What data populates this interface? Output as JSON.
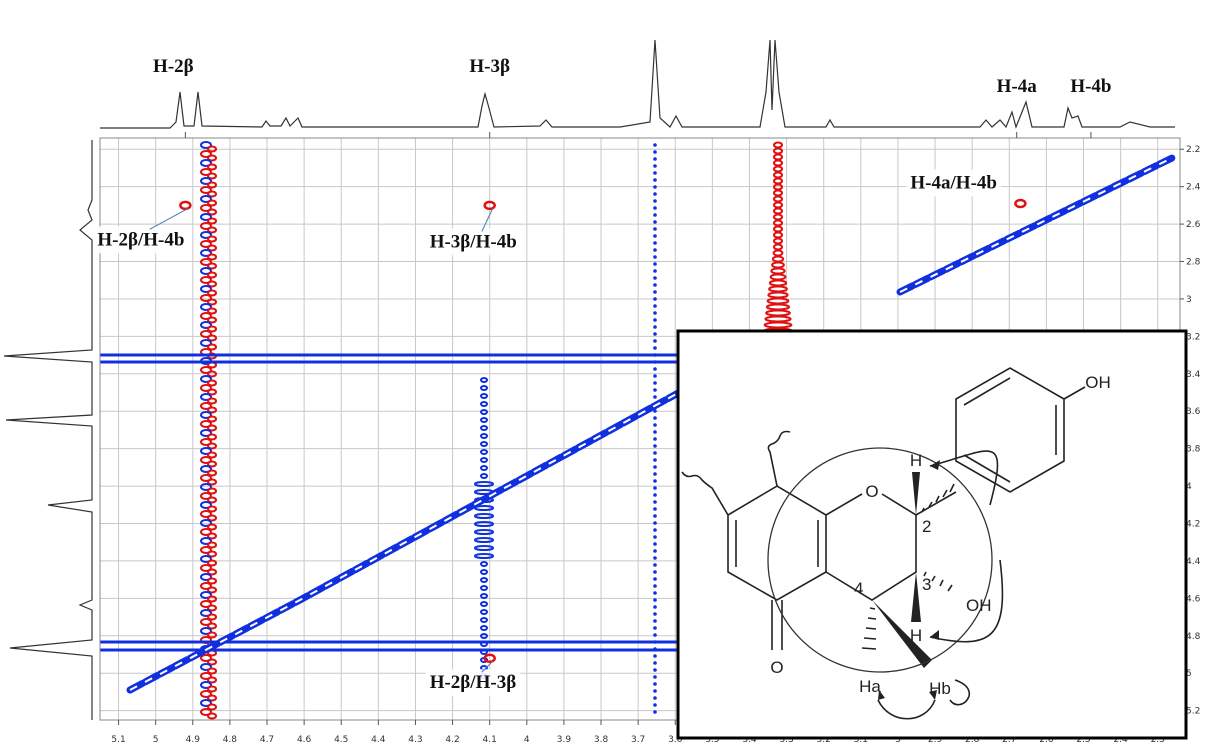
{
  "chart_data": {
    "type": "noesy",
    "xlim": [
      5.15,
      2.24
    ],
    "ylim": [
      2.14,
      5.25
    ],
    "xticks": [
      5.1,
      5.0,
      4.9,
      4.8,
      4.7,
      4.6,
      4.5,
      4.4,
      4.3,
      4.2,
      4.1,
      4.0,
      3.9,
      3.8,
      3.7,
      3.6,
      3.5,
      3.4,
      3.3,
      3.2,
      3.1,
      3.0,
      2.9,
      2.8,
      2.7,
      2.6,
      2.5,
      2.4,
      2.3
    ],
    "yticks": [
      2.2,
      2.4,
      2.6,
      2.8,
      3.0,
      3.2,
      3.4,
      3.6,
      3.8,
      4.0,
      4.2,
      4.4,
      4.6,
      4.8,
      5.0,
      5.2
    ],
    "grid": true,
    "top_labels": [
      {
        "text": "H-2β",
        "x": 4.92
      },
      {
        "text": "H-3β",
        "x": 4.1
      },
      {
        "text": "H-4a",
        "x": 2.68
      },
      {
        "text": "H-4b",
        "x": 2.48
      }
    ],
    "cross_peaks": [
      {
        "label": "H-2β/H-4b",
        "x": 4.92,
        "y": 2.5,
        "color": "#e01010"
      },
      {
        "label": "H-3β/H-4b",
        "x": 4.1,
        "y": 2.5,
        "color": "#e01010"
      },
      {
        "label": "H-2β/H-3β",
        "x": 4.1,
        "y": 4.92,
        "color": "#e01010"
      },
      {
        "label": "H-4a/H-4b",
        "x": 2.67,
        "y": 2.49,
        "color": "#e01010"
      }
    ]
  },
  "inset": {
    "labels": [
      "OH",
      "O",
      "H",
      "2",
      "3",
      "OH",
      "H",
      "4",
      "Ha",
      "Hb",
      "O"
    ]
  }
}
